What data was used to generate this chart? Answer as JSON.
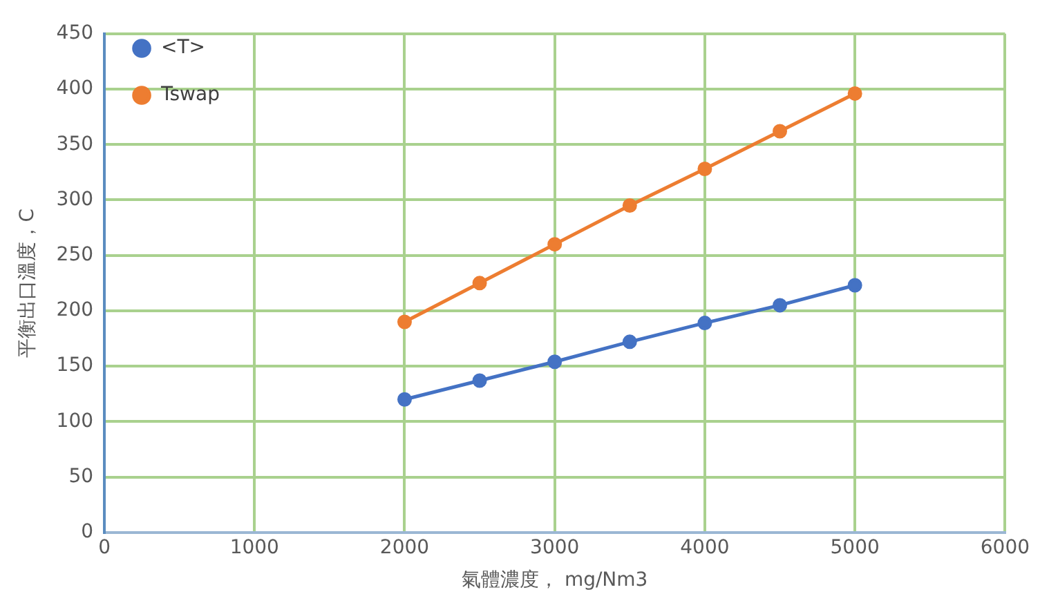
{
  "chart_data": {
    "type": "line",
    "xlabel": "氣體濃度， mg/Nm3",
    "ylabel": "平衡出口溫度，C",
    "x": [
      2000,
      2500,
      3000,
      3500,
      4000,
      4500,
      5000
    ],
    "series": [
      {
        "name": "<T>",
        "color": "#4472c4",
        "values": [
          120,
          137,
          154,
          172,
          189,
          205,
          223
        ]
      },
      {
        "name": "Tswap",
        "color": "#ed7d31",
        "values": [
          190,
          225,
          260,
          295,
          328,
          362,
          396
        ]
      }
    ],
    "xlim": [
      0,
      6000
    ],
    "xticks": [
      0,
      1000,
      2000,
      3000,
      4000,
      5000,
      6000
    ],
    "ylim": [
      0,
      450
    ],
    "yticks": [
      0,
      50,
      100,
      150,
      200,
      250,
      300,
      350,
      400,
      450
    ],
    "grid": true,
    "legend": "top left",
    "marker": "circle",
    "line_style": "solid"
  }
}
